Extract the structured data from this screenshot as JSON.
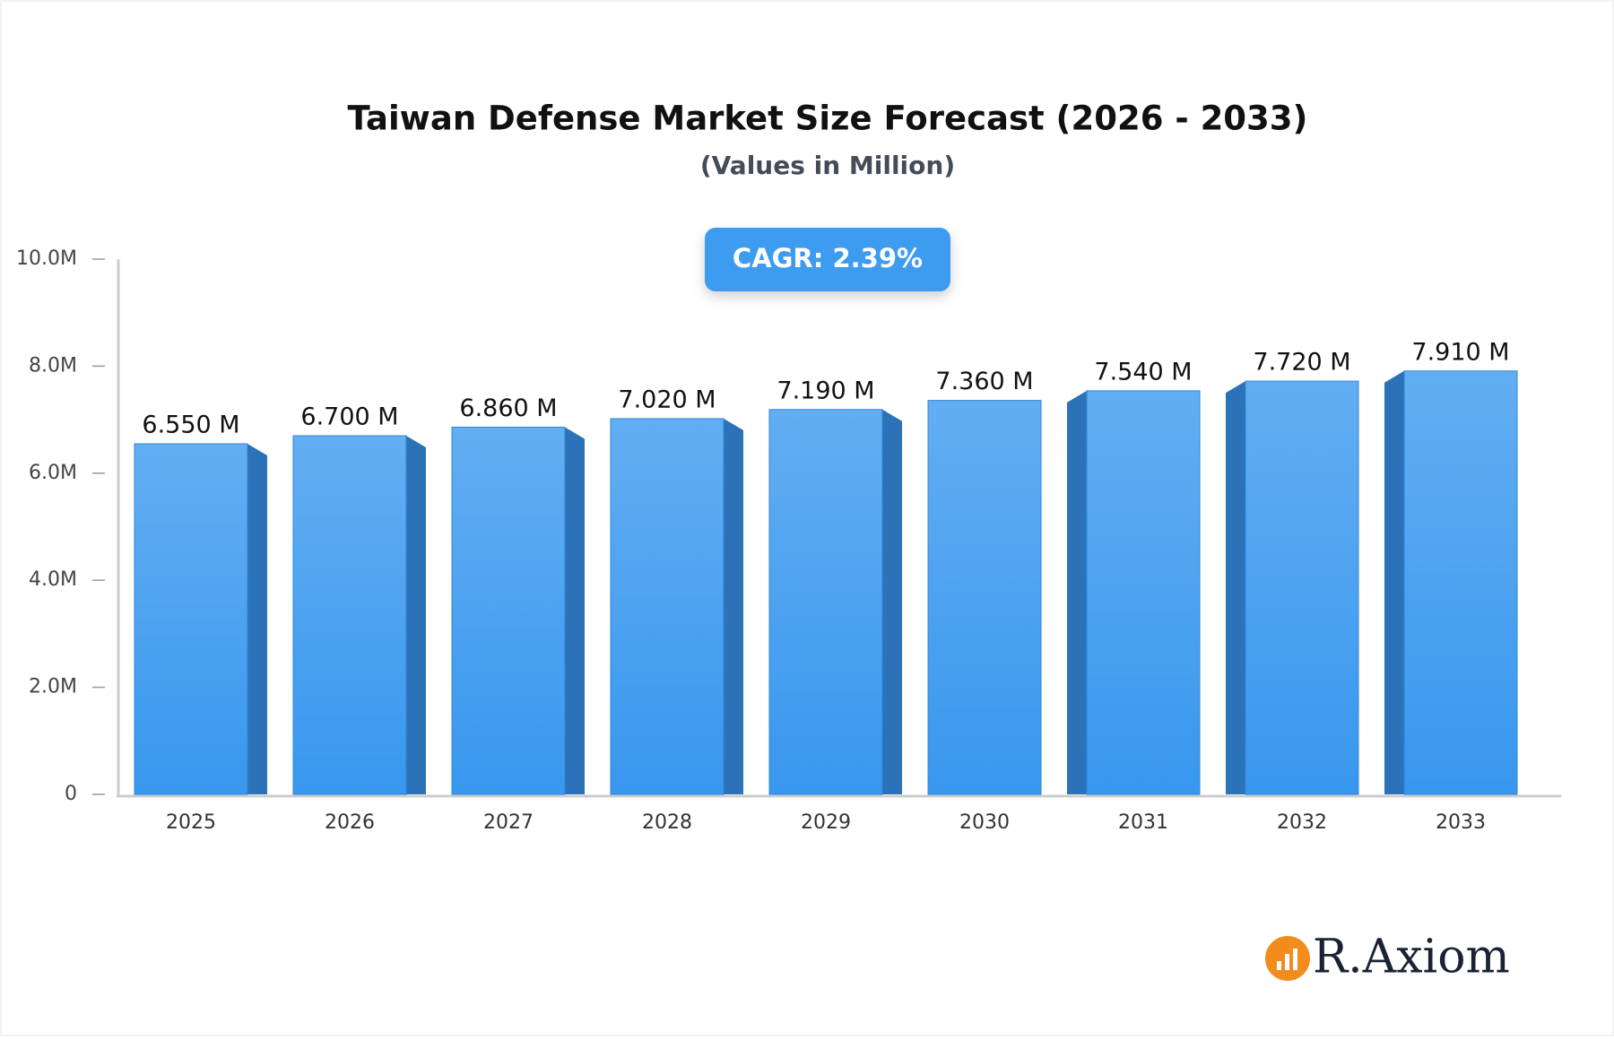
{
  "chart_data": {
    "type": "bar3d",
    "title": "Taiwan Defense Market Size Forecast (2026 - 2033)",
    "subtitle": "(Values in Million)",
    "annotation": "CAGR: 2.39%",
    "logo": "R.Axiom",
    "categories": [
      "2025",
      "2026",
      "2027",
      "2028",
      "2029",
      "2030",
      "2031",
      "2032",
      "2033"
    ],
    "values": [
      6.55,
      6.7,
      6.86,
      7.02,
      7.19,
      7.36,
      7.54,
      7.72,
      7.91
    ],
    "value_labels": [
      "6.550 M",
      "6.700 M",
      "6.860 M",
      "7.020 M",
      "7.190 M",
      "7.360 M",
      "7.540 M",
      "7.720 M",
      "7.910 M"
    ],
    "color": "#3d9bf0",
    "ylim": [
      0,
      10
    ],
    "yticks": [
      0,
      {
        "value": 2,
        "label": "2.0M"
      },
      {
        "value": 4,
        "label": "4.0M"
      },
      {
        "value": 6,
        "label": "6.0M"
      },
      {
        "value": 8,
        "label": "8.0M"
      },
      {
        "value": 10,
        "label": "10.0M"
      }
    ]
  }
}
